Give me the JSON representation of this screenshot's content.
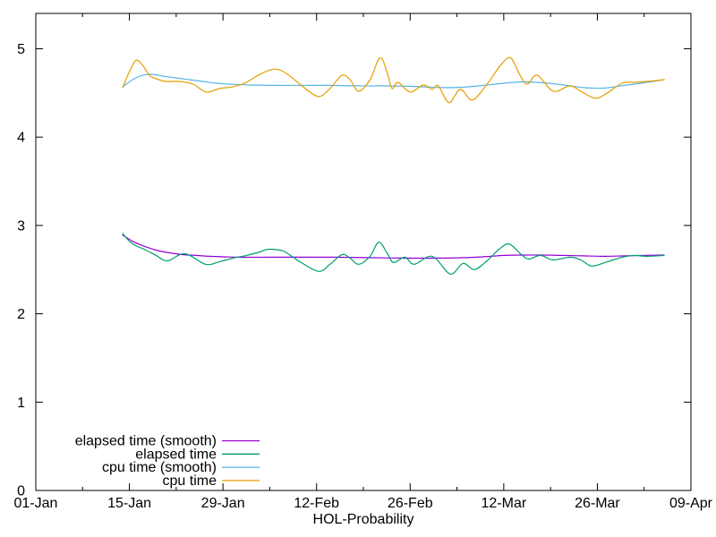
{
  "chart_data": {
    "type": "line",
    "xlabel": "HOL-Probability",
    "grid": false,
    "border": true,
    "background_color": "#ffffff",
    "axis_color": "#000000",
    "tick_style": "inward, mirrored on top and right",
    "x_axis": {
      "tick_labels": [
        "01-Jan",
        "15-Jan",
        "29-Jan",
        "12-Feb",
        "26-Feb",
        "12-Mar",
        "26-Mar",
        "09-Apr"
      ],
      "tick_days": [
        0,
        14,
        28,
        42,
        56,
        70,
        84,
        98
      ],
      "minor_tick_days": [
        7,
        21,
        35,
        49,
        63,
        77,
        91
      ],
      "range_days": [
        0,
        98
      ]
    },
    "y_axis": {
      "ticks": [
        0,
        1,
        2,
        3,
        4,
        5
      ],
      "range": [
        0,
        5.4
      ]
    },
    "legend": {
      "position": "inside bottom-left",
      "order": [
        "elapsed time (smooth)",
        "elapsed time",
        "cpu time (smooth)",
        "cpu time"
      ]
    },
    "series": [
      {
        "name": "elapsed time (smooth)",
        "color": "#9400D3",
        "points": [
          [
            13,
            2.89
          ],
          [
            14.5,
            2.82
          ],
          [
            16,
            2.77
          ],
          [
            18,
            2.72
          ],
          [
            20,
            2.69
          ],
          [
            22,
            2.67
          ],
          [
            24,
            2.66
          ],
          [
            26,
            2.65
          ],
          [
            28,
            2.645
          ],
          [
            31,
            2.64
          ],
          [
            35,
            2.64
          ],
          [
            40,
            2.64
          ],
          [
            45,
            2.64
          ],
          [
            50,
            2.635
          ],
          [
            55,
            2.63
          ],
          [
            60,
            2.63
          ],
          [
            64,
            2.635
          ],
          [
            67,
            2.645
          ],
          [
            70,
            2.66
          ],
          [
            73,
            2.665
          ],
          [
            76,
            2.665
          ],
          [
            79,
            2.66
          ],
          [
            82,
            2.655
          ],
          [
            85,
            2.65
          ],
          [
            88,
            2.655
          ],
          [
            91,
            2.66
          ],
          [
            94,
            2.665
          ]
        ]
      },
      {
        "name": "elapsed time",
        "color": "#009E73",
        "points": [
          [
            13,
            2.91
          ],
          [
            14,
            2.82
          ],
          [
            15,
            2.77
          ],
          [
            16.5,
            2.72
          ],
          [
            18,
            2.66
          ],
          [
            19.7,
            2.6
          ],
          [
            22.3,
            2.68
          ],
          [
            25.4,
            2.56
          ],
          [
            27.5,
            2.59
          ],
          [
            29.5,
            2.63
          ],
          [
            31.5,
            2.66
          ],
          [
            33.5,
            2.7
          ],
          [
            34.8,
            2.73
          ],
          [
            37,
            2.71
          ],
          [
            39.5,
            2.59
          ],
          [
            42.3,
            2.48
          ],
          [
            44,
            2.56
          ],
          [
            45.8,
            2.67
          ],
          [
            47,
            2.63
          ],
          [
            48.3,
            2.56
          ],
          [
            50,
            2.65
          ],
          [
            51.3,
            2.81
          ],
          [
            52.6,
            2.68
          ],
          [
            53.5,
            2.58
          ],
          [
            55.2,
            2.64
          ],
          [
            56.6,
            2.56
          ],
          [
            59.3,
            2.65
          ],
          [
            62,
            2.45
          ],
          [
            63.9,
            2.57
          ],
          [
            65.6,
            2.5
          ],
          [
            67.5,
            2.6
          ],
          [
            69.3,
            2.73
          ],
          [
            70.8,
            2.79
          ],
          [
            72.5,
            2.68
          ],
          [
            73.7,
            2.62
          ],
          [
            75.5,
            2.66
          ],
          [
            77.4,
            2.61
          ],
          [
            79.9,
            2.64
          ],
          [
            81.5,
            2.61
          ],
          [
            83.2,
            2.54
          ],
          [
            85.5,
            2.59
          ],
          [
            87.7,
            2.64
          ],
          [
            89.5,
            2.66
          ],
          [
            91.5,
            2.65
          ],
          [
            94,
            2.66
          ]
        ]
      },
      {
        "name": "cpu time (smooth)",
        "color": "#56B4E9",
        "points": [
          [
            13,
            4.57
          ],
          [
            14.5,
            4.65
          ],
          [
            16,
            4.7
          ],
          [
            17.5,
            4.71
          ],
          [
            19,
            4.69
          ],
          [
            21,
            4.67
          ],
          [
            23,
            4.65
          ],
          [
            25,
            4.63
          ],
          [
            27,
            4.61
          ],
          [
            29,
            4.6
          ],
          [
            32,
            4.59
          ],
          [
            36,
            4.585
          ],
          [
            40,
            4.585
          ],
          [
            44,
            4.585
          ],
          [
            48,
            4.58
          ],
          [
            52,
            4.58
          ],
          [
            56,
            4.575
          ],
          [
            59,
            4.565
          ],
          [
            61,
            4.56
          ],
          [
            64,
            4.565
          ],
          [
            67,
            4.585
          ],
          [
            70,
            4.61
          ],
          [
            73,
            4.625
          ],
          [
            76,
            4.615
          ],
          [
            79,
            4.59
          ],
          [
            82,
            4.56
          ],
          [
            85,
            4.555
          ],
          [
            88,
            4.585
          ],
          [
            91,
            4.615
          ],
          [
            94,
            4.65
          ]
        ]
      },
      {
        "name": "cpu time",
        "color": "#E69F00",
        "points": [
          [
            13,
            4.56
          ],
          [
            14,
            4.74
          ],
          [
            15,
            4.87
          ],
          [
            16,
            4.81
          ],
          [
            17,
            4.7
          ],
          [
            18,
            4.66
          ],
          [
            19.5,
            4.63
          ],
          [
            21.5,
            4.63
          ],
          [
            23.5,
            4.6
          ],
          [
            25.5,
            4.51
          ],
          [
            27.5,
            4.55
          ],
          [
            29.5,
            4.57
          ],
          [
            31.5,
            4.62
          ],
          [
            33.5,
            4.71
          ],
          [
            35.7,
            4.77
          ],
          [
            37.5,
            4.72
          ],
          [
            39.5,
            4.6
          ],
          [
            42.2,
            4.46
          ],
          [
            44,
            4.55
          ],
          [
            45.8,
            4.7
          ],
          [
            47,
            4.65
          ],
          [
            48.3,
            4.52
          ],
          [
            50,
            4.65
          ],
          [
            51.5,
            4.9
          ],
          [
            52.6,
            4.72
          ],
          [
            53.3,
            4.55
          ],
          [
            54.2,
            4.62
          ],
          [
            56,
            4.51
          ],
          [
            58,
            4.59
          ],
          [
            59.3,
            4.54
          ],
          [
            60.2,
            4.58
          ],
          [
            61.8,
            4.39
          ],
          [
            63.5,
            4.54
          ],
          [
            65.3,
            4.42
          ],
          [
            67.5,
            4.6
          ],
          [
            69.5,
            4.81
          ],
          [
            71,
            4.9
          ],
          [
            72.3,
            4.72
          ],
          [
            73.5,
            4.6
          ],
          [
            75,
            4.7
          ],
          [
            77.4,
            4.52
          ],
          [
            79.9,
            4.58
          ],
          [
            81.5,
            4.52
          ],
          [
            83.7,
            4.44
          ],
          [
            85.5,
            4.5
          ],
          [
            87.7,
            4.61
          ],
          [
            89.5,
            4.62
          ],
          [
            91.5,
            4.63
          ],
          [
            94,
            4.65
          ]
        ]
      }
    ]
  }
}
